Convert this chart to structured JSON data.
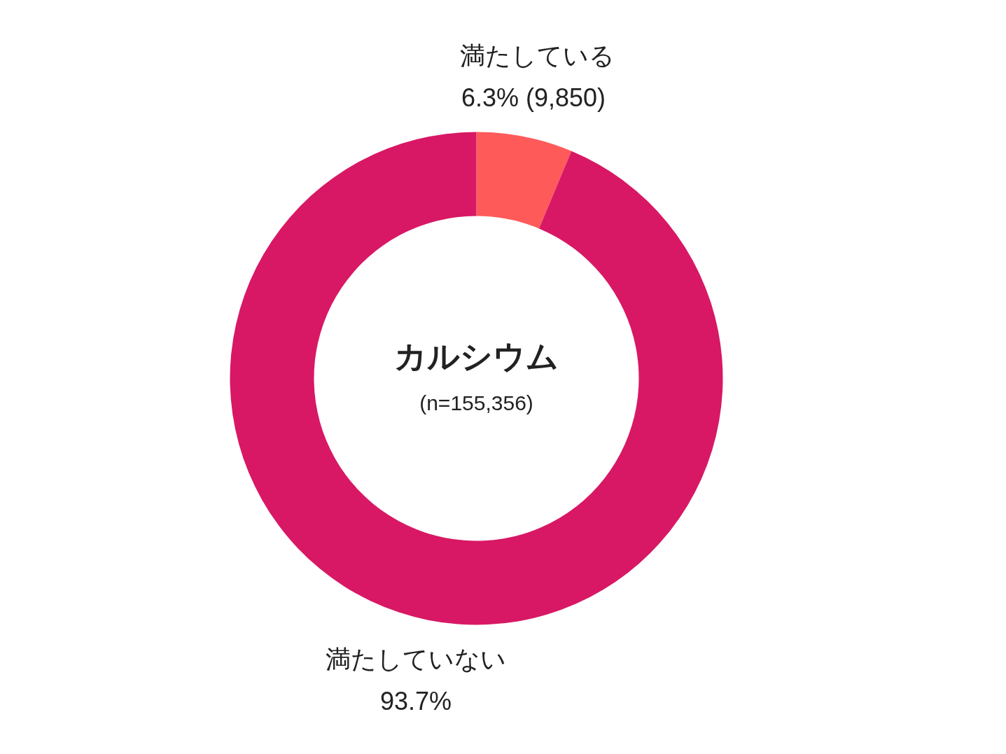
{
  "chart_data": {
    "type": "donut",
    "title": "カルシウム",
    "subtitle": "(n=155,356)",
    "categories": [
      "満たしている",
      "満たしていない"
    ],
    "values": [
      6.3,
      93.7
    ],
    "colors": [
      "#ff5a5a",
      "#d81864"
    ],
    "value_labels": [
      "6.3%  (9,850)",
      "93.7%"
    ]
  }
}
